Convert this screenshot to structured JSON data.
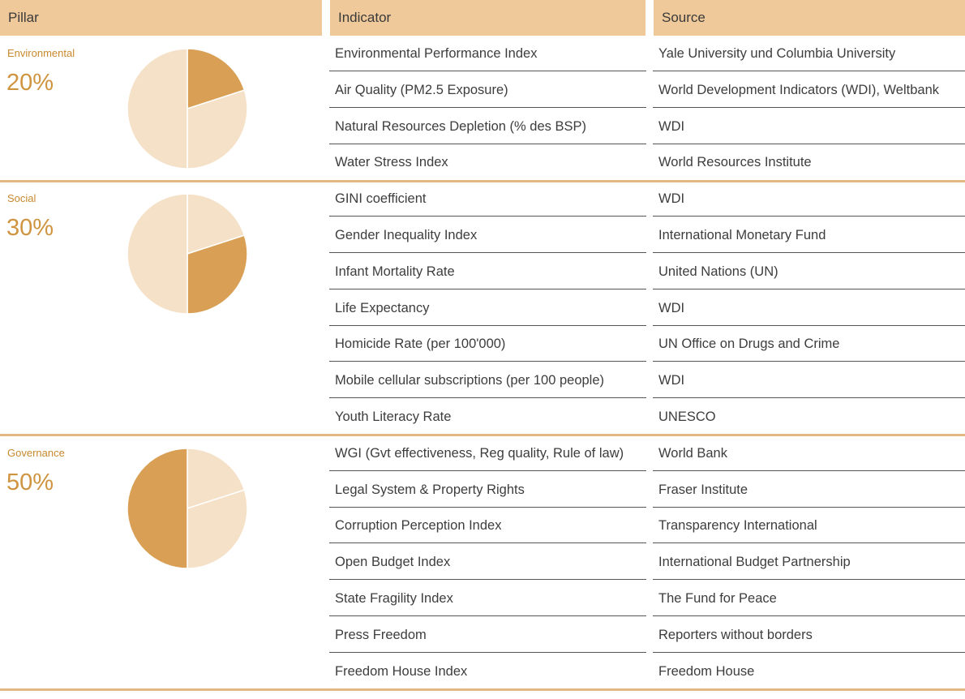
{
  "headers": {
    "pillar": "Pillar",
    "indicator": "Indicator",
    "source": "Source"
  },
  "colors": {
    "accent": "#d9a055",
    "light": "#f5e1c8",
    "header": "#efc99a",
    "separator": "#e2b984"
  },
  "pillars": [
    {
      "name": "Environmental",
      "percent": "20%",
      "weight": 0.2,
      "rows": [
        {
          "indicator": "Environmental Performance Index",
          "source": "Yale University und Columbia University"
        },
        {
          "indicator": "Air Quality (PM2.5 Exposure)",
          "source": "World Development Indicators (WDI), Weltbank"
        },
        {
          "indicator": "Natural Resources Depletion (% des BSP)",
          "source": "WDI"
        },
        {
          "indicator": "Water Stress Index",
          "source": "World Resources Institute"
        }
      ]
    },
    {
      "name": "Social",
      "percent": "30%",
      "weight": 0.3,
      "rows": [
        {
          "indicator": "GINI coefficient",
          "source": "WDI"
        },
        {
          "indicator": "Gender Inequality Index",
          "source": "International Monetary Fund"
        },
        {
          "indicator": "Infant Mortality Rate",
          "source": "United Nations (UN)"
        },
        {
          "indicator": "Life Expectancy",
          "source": "WDI"
        },
        {
          "indicator": "Homicide Rate (per 100'000)",
          "source": "UN Office on Drugs and Crime"
        },
        {
          "indicator": "Mobile cellular subscriptions (per 100 people)",
          "source": "WDI"
        },
        {
          "indicator": "Youth Literacy Rate",
          "source": "UNESCO"
        }
      ]
    },
    {
      "name": "Governance",
      "percent": "50%",
      "weight": 0.5,
      "rows": [
        {
          "indicator": "WGI (Gvt effectiveness, Reg quality, Rule of law)",
          "source": "World Bank"
        },
        {
          "indicator": "Legal System & Property Rights",
          "source": "Fraser Institute"
        },
        {
          "indicator": "Corruption Perception Index",
          "source": "Transparency International"
        },
        {
          "indicator": "Open Budget Index",
          "source": "International Budget Partnership"
        },
        {
          "indicator": "State Fragility Index",
          "source": "The Fund for Peace"
        },
        {
          "indicator": "Press Freedom",
          "source": "Reporters without borders"
        },
        {
          "indicator": "Freedom House Index",
          "source": "Freedom House"
        }
      ]
    }
  ]
}
